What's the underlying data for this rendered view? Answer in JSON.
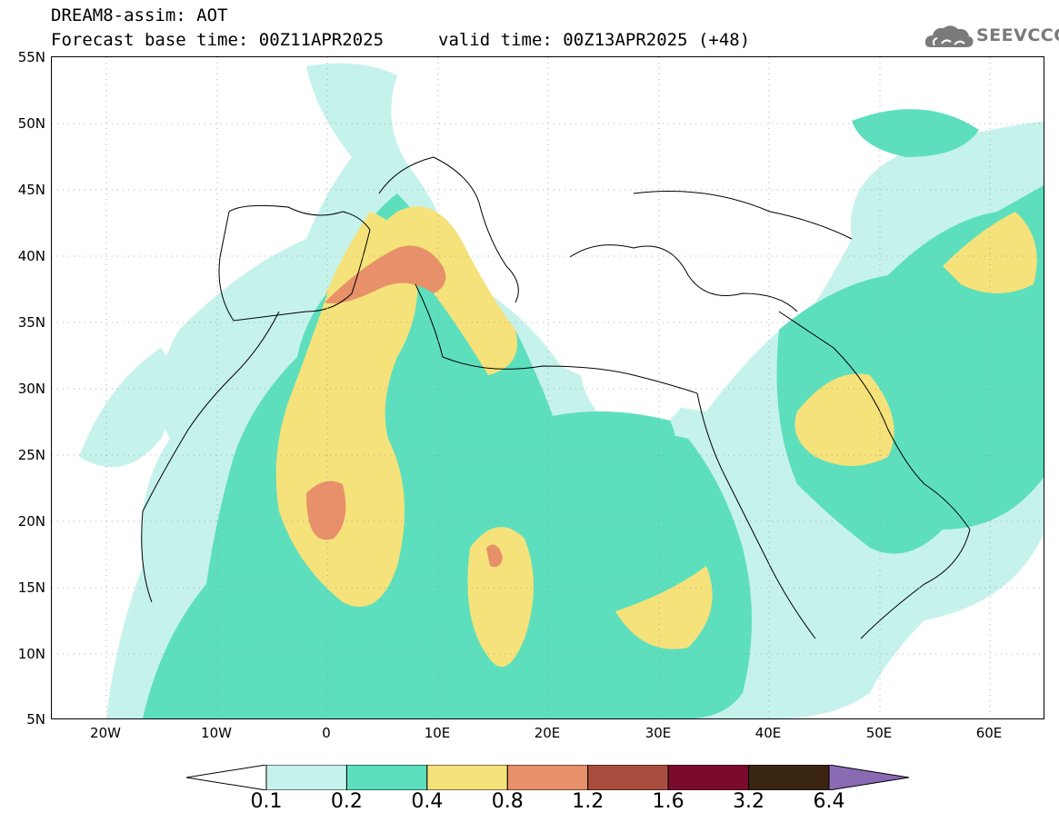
{
  "header": {
    "title": "DREAM8-assim: AOT",
    "base_time": "Forecast base time: 00Z11APR2025",
    "valid_time": "valid time: 00Z13APR2025 (+48)"
  },
  "logo": {
    "text": "SEEVCCC",
    "icon": "cloud-icon"
  },
  "axes": {
    "lat_labels": [
      "55N",
      "50N",
      "45N",
      "40N",
      "35N",
      "30N",
      "25N",
      "20N",
      "15N",
      "10N",
      "5N"
    ],
    "lon_labels": [
      "20W",
      "10W",
      "0",
      "10E",
      "20E",
      "30E",
      "40E",
      "50E",
      "60E"
    ],
    "lat_range": [
      5,
      55
    ],
    "lon_range": [
      -25,
      65
    ],
    "grid": "dotted"
  },
  "colorbar": {
    "labels": [
      "0.1",
      "0.2",
      "0.4",
      "0.8",
      "1.2",
      "1.6",
      "3.2",
      "6.4"
    ],
    "colors": [
      "#ffffff",
      "#c6f2ec",
      "#5ddfbd",
      "#f5e27a",
      "#e7906a",
      "#a94d3e",
      "#7a0b2c",
      "#3a2412",
      "#8a6ab3"
    ]
  }
}
